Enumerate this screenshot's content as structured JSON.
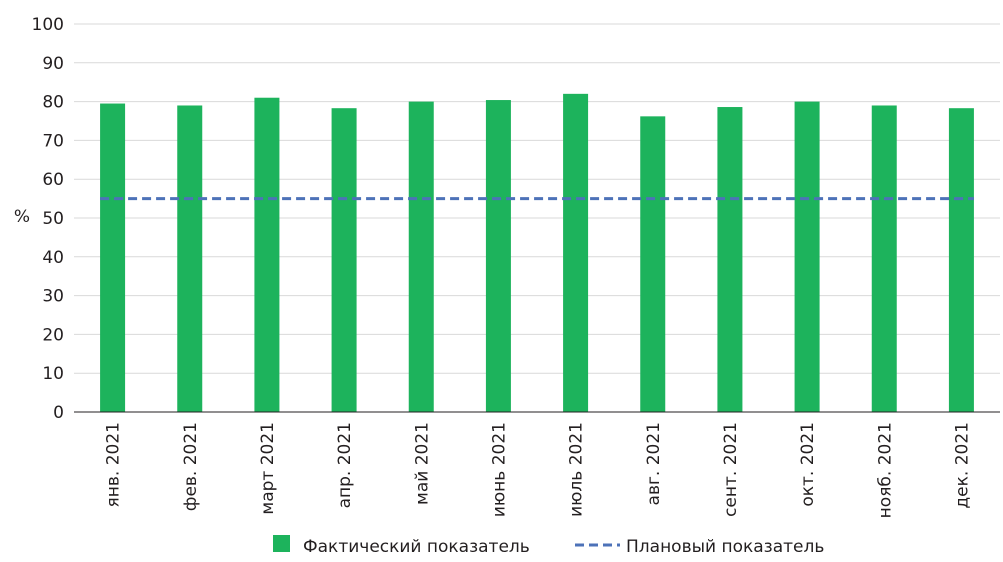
{
  "chart_data": {
    "type": "bar",
    "categories": [
      "янв. 2021",
      "фев. 2021",
      "март 2021",
      "апр. 2021",
      "май 2021",
      "июнь 2021",
      "июль 2021",
      "авг. 2021",
      "сент. 2021",
      "окт. 2021",
      "нояб. 2021",
      "дек. 2021"
    ],
    "series": [
      {
        "name": "Фактический показатель",
        "type": "bar",
        "color": "#1db35c",
        "values": [
          79.5,
          79.0,
          81.0,
          78.3,
          80.0,
          80.4,
          82.0,
          76.2,
          78.6,
          80.0,
          79.0,
          78.3
        ]
      },
      {
        "name": "Плановый показатель",
        "type": "line",
        "line_style": "dashed",
        "color": "#4d72b8",
        "values": [
          55,
          55,
          55,
          55,
          55,
          55,
          55,
          55,
          55,
          55,
          55,
          55
        ]
      }
    ],
    "ylabel": "%",
    "ylim": [
      0,
      100
    ],
    "yticks": [
      0,
      10,
      20,
      30,
      40,
      50,
      60,
      70,
      80,
      90,
      100
    ],
    "grid": true,
    "legend_position": "bottom"
  }
}
